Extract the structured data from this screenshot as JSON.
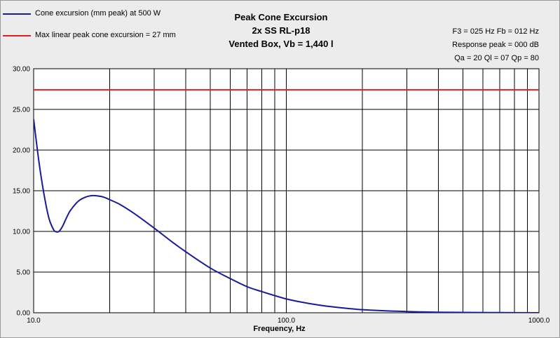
{
  "legend": [
    {
      "label": "Cone excursion (mm peak) at 500 W",
      "color": "#1a1a9c"
    },
    {
      "label": "Max linear peak cone excursion = 27 mm",
      "color": "#e02020"
    }
  ],
  "title": {
    "line1": "Peak Cone Excursion",
    "line2": "2x SS RL-p18",
    "line3": "Vented Box, Vb = 1,440 l"
  },
  "info": {
    "line1": "F3 = 025 Hz  Fb = 012 Hz",
    "line2": "Response peak = 000 dB",
    "line3": "Qa = 20  Ql = 07  Qp = 80"
  },
  "chart_data": {
    "type": "line",
    "title": "Peak Cone Excursion",
    "subtitle": "2x SS RL-p18 / Vented Box, Vb = 1,440 l",
    "xlabel": "Frequency, Hz",
    "ylabel": "",
    "x_scale": "log",
    "xlim": [
      10,
      1000
    ],
    "ylim": [
      0,
      30
    ],
    "x_tick_labels": [
      "10.0",
      "100.0",
      "1000.0"
    ],
    "y_tick_labels": [
      "0.00",
      "5.00",
      "10.00",
      "15.00",
      "20.00",
      "25.00",
      "30.00"
    ],
    "grid": true,
    "legend_position": "top-left",
    "series": [
      {
        "name": "Cone excursion (mm peak) at 500 W",
        "color": "#1a1a9c",
        "x": [
          10,
          10.5,
          11,
          11.5,
          12,
          12.3,
          12.6,
          13,
          13.5,
          14,
          15,
          16,
          17,
          18,
          19,
          20,
          22,
          25,
          30,
          35,
          40,
          50,
          60,
          70,
          80,
          100,
          120,
          150,
          200,
          300,
          400,
          500,
          700,
          1000
        ],
        "values": [
          23.8,
          18.5,
          14.5,
          11.6,
          10.2,
          9.95,
          10.0,
          10.6,
          11.7,
          12.6,
          13.7,
          14.2,
          14.4,
          14.35,
          14.2,
          13.9,
          13.3,
          12.2,
          10.4,
          8.8,
          7.5,
          5.5,
          4.2,
          3.2,
          2.6,
          1.7,
          1.2,
          0.75,
          0.38,
          0.15,
          0.07,
          0.04,
          0.02,
          0.0
        ]
      },
      {
        "name": "Max linear peak cone excursion = 27 mm",
        "color": "#e02020",
        "x": [
          10,
          1000
        ],
        "values": [
          27.4,
          27.4
        ]
      }
    ]
  }
}
